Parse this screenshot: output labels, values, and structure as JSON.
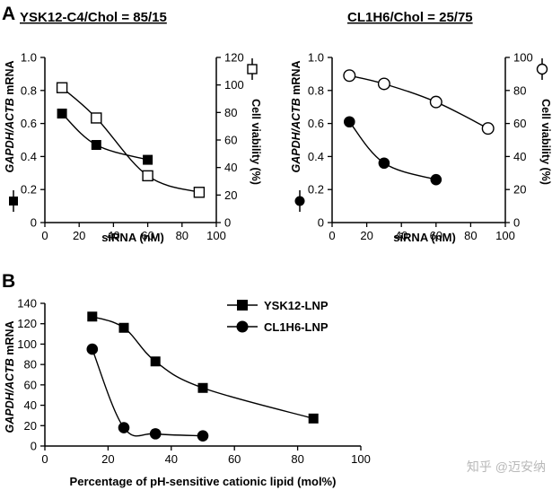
{
  "figure": {
    "panel_a_letter": "A",
    "panel_b_letter": "B",
    "watermark": "知乎 @迈安纳"
  },
  "chart_data": [
    {
      "type": "line",
      "id": "a1",
      "title": "YSK12-C4/Chol = 85/15",
      "xlabel": "siRNA (nM)",
      "ylabel_italic": "GAPDH/ACTB",
      "ylabel_rest": " mRNA",
      "y2label": "Cell viability (%)",
      "xlim": [
        0,
        100
      ],
      "ylim": [
        0,
        1.0
      ],
      "y2lim": [
        0,
        120
      ],
      "xticks": [
        "0",
        "20",
        "40",
        "60",
        "80",
        "100"
      ],
      "yticks": [
        "0",
        "0.2",
        "0.4",
        "0.6",
        "0.8",
        "1.0"
      ],
      "y2ticks": [
        "0",
        "20",
        "40",
        "60",
        "80",
        "100",
        "120"
      ],
      "series": [
        {
          "name": "mRNA",
          "axis": "left",
          "marker": "square-filled",
          "x": [
            10,
            30,
            60
          ],
          "y": [
            0.66,
            0.47,
            0.38
          ]
        },
        {
          "name": "Cell viability",
          "axis": "right",
          "marker": "square-open",
          "x": [
            10,
            30,
            60,
            90
          ],
          "y": [
            98,
            76,
            34,
            22
          ]
        }
      ]
    },
    {
      "type": "line",
      "id": "a2",
      "title": "CL1H6/Chol = 25/75",
      "xlabel": "siRNA (nM)",
      "ylabel_italic": "GAPDH/ACTB",
      "ylabel_rest": " mRNA",
      "y2label": "Cell viability (%)",
      "xlim": [
        0,
        100
      ],
      "ylim": [
        0,
        1.0
      ],
      "y2lim": [
        0,
        100
      ],
      "xticks": [
        "0",
        "20",
        "40",
        "60",
        "80",
        "100"
      ],
      "yticks": [
        "0",
        "0.2",
        "0.4",
        "0.6",
        "0.8",
        "1.0"
      ],
      "y2ticks": [
        "0",
        "20",
        "40",
        "60",
        "80",
        "100"
      ],
      "series": [
        {
          "name": "mRNA",
          "axis": "left",
          "marker": "circle-filled",
          "x": [
            10,
            30,
            60
          ],
          "y": [
            0.61,
            0.36,
            0.26
          ]
        },
        {
          "name": "Cell viability",
          "axis": "right",
          "marker": "circle-open",
          "x": [
            10,
            30,
            60,
            90
          ],
          "y": [
            89,
            84,
            73,
            57
          ]
        }
      ]
    },
    {
      "type": "line",
      "id": "b",
      "title": "",
      "xlabel": "Percentage of pH-sensitive cationic lipid (mol%)",
      "ylabel_italic": "GAPDH/ACTB",
      "ylabel_rest": " mRNA",
      "xlim": [
        0,
        100
      ],
      "ylim": [
        0,
        140
      ],
      "xticks": [
        "0",
        "20",
        "40",
        "60",
        "80",
        "100"
      ],
      "yticks": [
        "0",
        "20",
        "40",
        "60",
        "80",
        "100",
        "120",
        "140"
      ],
      "series": [
        {
          "name": "YSK12-LNP",
          "axis": "left",
          "marker": "square-filled",
          "x": [
            15,
            25,
            35,
            50,
            85
          ],
          "y": [
            127,
            116,
            83,
            57,
            27
          ]
        },
        {
          "name": "CL1H6-LNP",
          "axis": "left",
          "marker": "circle-filled",
          "x": [
            15,
            25,
            35,
            50
          ],
          "y": [
            95,
            18,
            12,
            10
          ]
        }
      ]
    }
  ]
}
